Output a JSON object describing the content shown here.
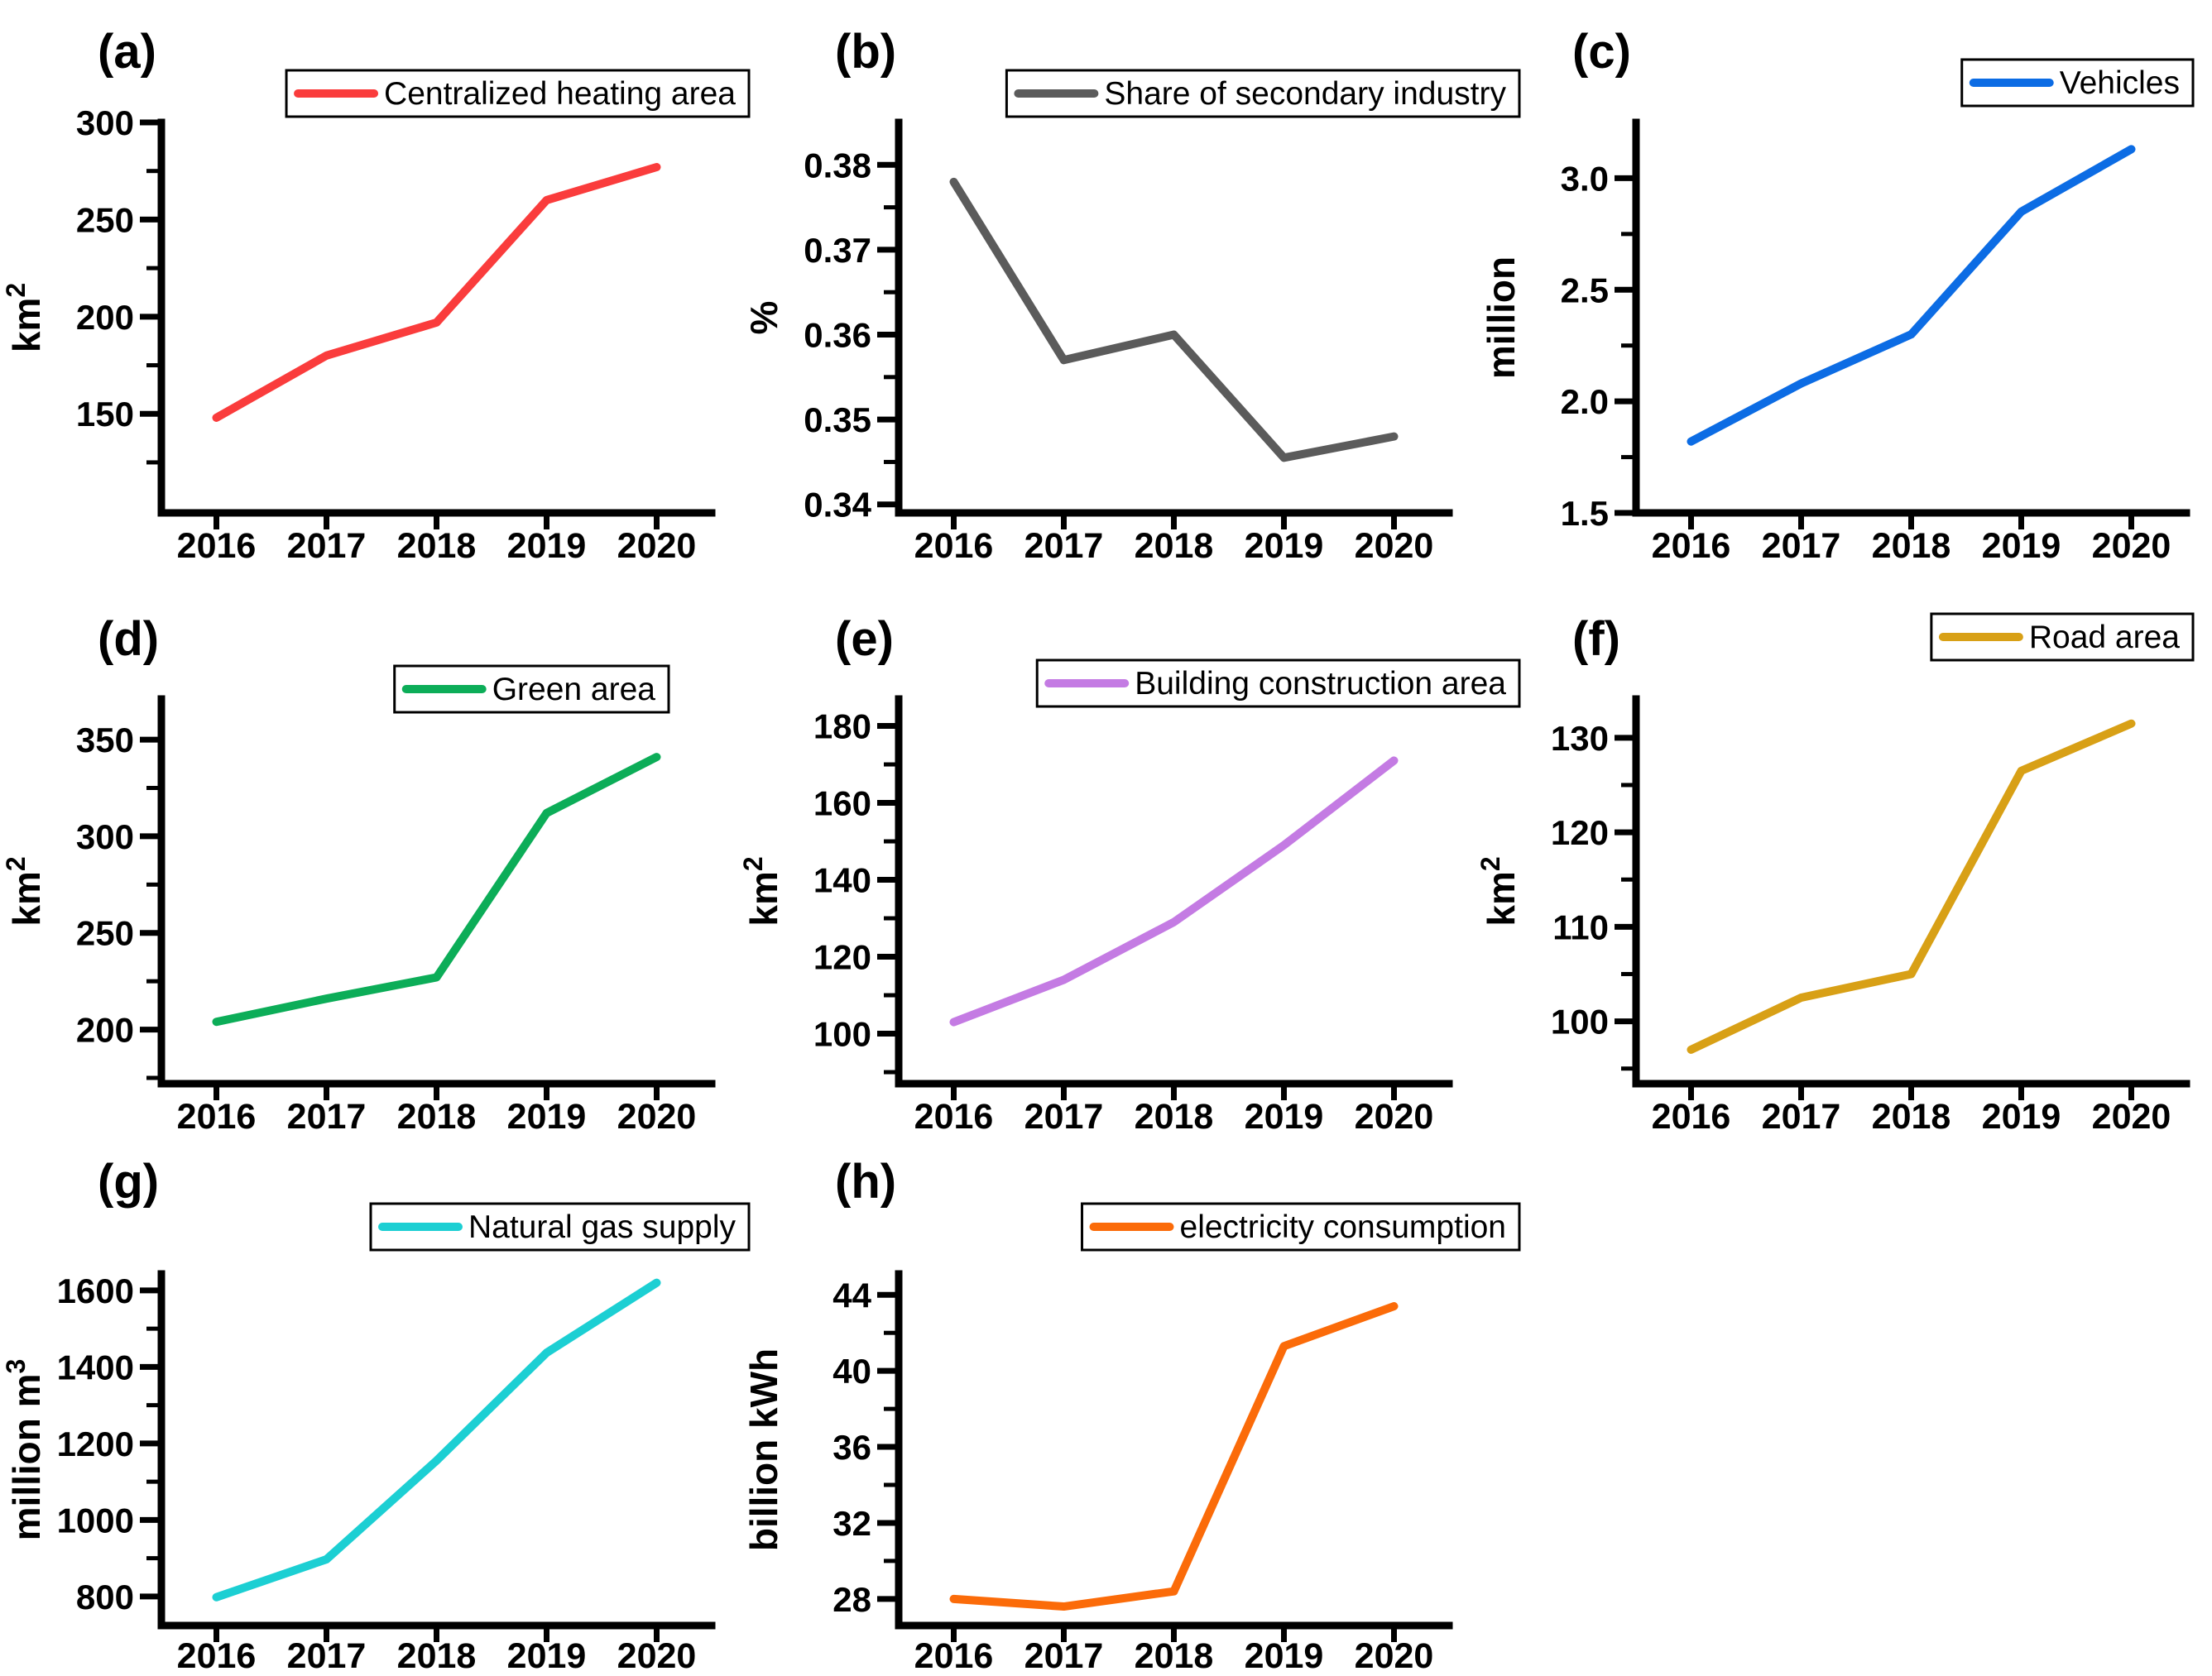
{
  "figure": {
    "background": "#ffffff",
    "axis_color": "#000000",
    "description": "Eight-panel line chart figure, urban indicators 2016-2020"
  },
  "chart_data": [
    {
      "type": "line",
      "panel_label": "(a)",
      "legend": "Centralized heating area",
      "color": "#FA3C3C",
      "ylabel": "km²",
      "ylabel_base": "km",
      "ylabel_sup": "2",
      "xlabel": "",
      "categories": [
        "2016",
        "2017",
        "2018",
        "2019",
        "2020"
      ],
      "values": [
        148,
        180,
        197,
        260,
        277
      ],
      "ytick_values": [
        150,
        200,
        250,
        300
      ],
      "ytick_labels": [
        "150",
        "200",
        "250",
        "300"
      ],
      "ylim": [
        99,
        300
      ],
      "grid": false,
      "legend_position": "top-right"
    },
    {
      "type": "line",
      "panel_label": "(b)",
      "legend": "Share of secondary industry",
      "color": "#5B5B5B",
      "ylabel": "%",
      "ylabel_base": "%",
      "ylabel_sup": "",
      "xlabel": "",
      "categories": [
        "2016",
        "2017",
        "2018",
        "2019",
        "2020"
      ],
      "values": [
        0.378,
        0.357,
        0.36,
        0.3455,
        0.348
      ],
      "ytick_values": [
        0.34,
        0.35,
        0.36,
        0.37,
        0.38
      ],
      "ytick_labels": [
        "0.34",
        "0.35",
        "0.36",
        "0.37",
        "0.38"
      ],
      "ylim": [
        0.339,
        0.385
      ],
      "grid": false,
      "legend_position": "top-right"
    },
    {
      "type": "line",
      "panel_label": "(c)",
      "legend": "Vehicles",
      "color": "#0C6CE4",
      "ylabel": "million",
      "ylabel_base": "million",
      "ylabel_sup": "",
      "xlabel": "",
      "categories": [
        "2016",
        "2017",
        "2018",
        "2019",
        "2020"
      ],
      "values": [
        1.82,
        2.08,
        2.3,
        2.85,
        3.13
      ],
      "ytick_values": [
        1.5,
        2.0,
        2.5,
        3.0
      ],
      "ytick_labels": [
        "1.5",
        "2.0",
        "2.5",
        "3.0"
      ],
      "ylim": [
        1.5,
        3.25
      ],
      "grid": false,
      "legend_position": "top-right"
    },
    {
      "type": "line",
      "panel_label": "(d)",
      "legend": "Green area",
      "color": "#0CAD58",
      "ylabel": "km²",
      "ylabel_base": "km",
      "ylabel_sup": "2",
      "xlabel": "",
      "categories": [
        "2016",
        "2017",
        "2018",
        "2019",
        "2020"
      ],
      "values": [
        204,
        216,
        227,
        312,
        341
      ],
      "ytick_values": [
        200,
        250,
        300,
        350
      ],
      "ytick_labels": [
        "200",
        "250",
        "300",
        "350"
      ],
      "ylim": [
        172,
        371
      ],
      "grid": false,
      "legend_position": "top-right"
    },
    {
      "type": "line",
      "panel_label": "(e)",
      "legend": "Building construction area",
      "color": "#C47BE3",
      "ylabel": "km²",
      "ylabel_base": "km",
      "ylabel_sup": "2",
      "xlabel": "",
      "categories": [
        "2016",
        "2017",
        "2018",
        "2019",
        "2020"
      ],
      "values": [
        103,
        114,
        129,
        149,
        171
      ],
      "ytick_values": [
        100,
        120,
        140,
        160,
        180
      ],
      "ytick_labels": [
        "100",
        "120",
        "140",
        "160",
        "180"
      ],
      "ylim": [
        87,
        187
      ],
      "grid": false,
      "legend_position": "top-right"
    },
    {
      "type": "line",
      "panel_label": "(f)",
      "legend": "Road area",
      "color": "#D8A016",
      "ylabel": "km²",
      "ylabel_base": "km",
      "ylabel_sup": "2",
      "xlabel": "",
      "categories": [
        "2016",
        "2017",
        "2018",
        "2019",
        "2020"
      ],
      "values": [
        97,
        102.5,
        105,
        126.5,
        131.5
      ],
      "ytick_values": [
        100,
        110,
        120,
        130
      ],
      "ytick_labels": [
        "100",
        "110",
        "120",
        "130"
      ],
      "ylim": [
        93.4,
        134.1
      ],
      "grid": false,
      "legend_position": "top-right"
    },
    {
      "type": "line",
      "panel_label": "(g)",
      "legend": "Natural gas supply",
      "color": "#1CCFD3",
      "ylabel": "million m³",
      "ylabel_base": "million m",
      "ylabel_sup": "3",
      "xlabel": "",
      "categories": [
        "2016",
        "2017",
        "2018",
        "2019",
        "2020"
      ],
      "values": [
        798,
        897,
        1155,
        1437,
        1620
      ],
      "ytick_values": [
        800,
        1000,
        1200,
        1400,
        1600
      ],
      "ytick_labels": [
        "800",
        "1000",
        "1200",
        "1400",
        "1600"
      ],
      "ylim": [
        724,
        1643
      ],
      "grid": false,
      "legend_position": "top-right"
    },
    {
      "type": "line",
      "panel_label": "(h)",
      "legend": "electricity consumption",
      "color": "#FB6B09",
      "ylabel": "billion kWh",
      "ylabel_base": "billion kWh",
      "ylabel_sup": "",
      "xlabel": "",
      "categories": [
        "2016",
        "2017",
        "2018",
        "2019",
        "2020"
      ],
      "values": [
        28,
        27.6,
        28.4,
        41.3,
        43.4
      ],
      "ytick_values": [
        28,
        32,
        36,
        40,
        44
      ],
      "ytick_labels": [
        "28",
        "32",
        "36",
        "40",
        "44"
      ],
      "ylim": [
        26.6,
        45.1
      ],
      "grid": false,
      "legend_position": "top-right"
    }
  ]
}
